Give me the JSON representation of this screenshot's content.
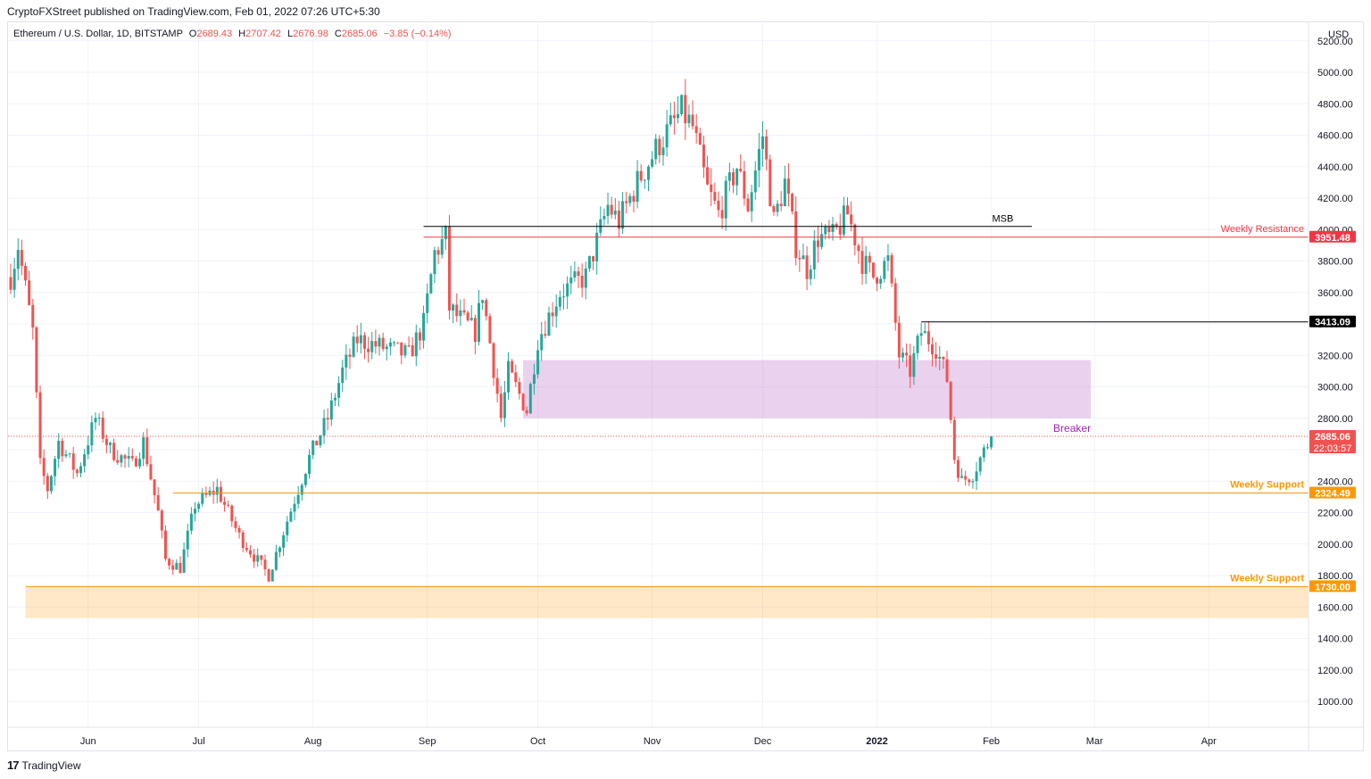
{
  "header": {
    "published": "CryptoFXStreet published on TradingView.com, Feb 01, 2022 07:26 UTC+5:30"
  },
  "legend": {
    "symbol": "Ethereum / U.S. Dollar, 1D, BITSTAMP",
    "o_label": "O",
    "o": "2689.43",
    "h_label": "H",
    "h": "2707.42",
    "l_label": "L",
    "l": "2676.98",
    "c_label": "C",
    "c": "2685.06",
    "change": "−3.85 (−0.14%)"
  },
  "footer": {
    "brand": "TradingView"
  },
  "colors": {
    "up": "#26a69a",
    "down": "#ef5350",
    "resistance": "#f23645",
    "support": "#ff9800",
    "breaker_fill": "#e1bee7",
    "breaker_text": "#9c27b0"
  },
  "chart_data": {
    "type": "candlestick",
    "currency": "USD",
    "ylim": [
      850,
      5300
    ],
    "y_ticks": [
      1000,
      1200,
      1400,
      1600,
      1800,
      2000,
      2200,
      2400,
      2600,
      2800,
      3000,
      3200,
      3400,
      3600,
      3800,
      4000,
      4200,
      4400,
      4600,
      4800,
      5000,
      5200
    ],
    "x_ticks": [
      "Jun",
      "Jul",
      "Aug",
      "Sep",
      "Oct",
      "Nov",
      "Dec",
      "2022",
      "Feb",
      "Mar",
      "Apr"
    ],
    "price_labels": [
      {
        "label": "3951.48",
        "value": 3951.48,
        "color": "#f23645"
      },
      {
        "label": "3413.09",
        "value": 3413.09,
        "color": "#000000"
      },
      {
        "label": "2685.06",
        "value": 2685.06,
        "color": "#ef5350",
        "sub": "22:03:57"
      },
      {
        "label": "2324.49",
        "value": 2324.49,
        "color": "#ff9800"
      },
      {
        "label": "1730.00",
        "value": 1730.0,
        "color": "#ff9800"
      }
    ],
    "annotations": {
      "msb": {
        "label": "MSB",
        "value": 4020
      },
      "weekly_resistance": {
        "label": "Weekly Resistance",
        "value": 3951.48
      },
      "breaker": {
        "label": "Breaker",
        "low": 2800,
        "high": 3170
      },
      "weekly_support_1": {
        "label": "Weekly Support",
        "value": 2324.49
      },
      "weekly_support_2": {
        "label": "Weekly Support",
        "value": 1730.0,
        "zone_low": 1530
      },
      "level_3413": {
        "value": 3413.09
      }
    },
    "anchors": [
      [
        "2021-05-11",
        3700
      ],
      [
        "2021-05-13",
        3900
      ],
      [
        "2021-05-17",
        3350
      ],
      [
        "2021-05-19",
        2500
      ],
      [
        "2021-05-21",
        2350
      ],
      [
        "2021-05-24",
        2650
      ],
      [
        "2021-05-29",
        2450
      ],
      [
        "2021-06-03",
        2800
      ],
      [
        "2021-06-07",
        2600
      ],
      [
        "2021-06-13",
        2500
      ],
      [
        "2021-06-16",
        2650
      ],
      [
        "2021-06-20",
        2200
      ],
      [
        "2021-06-22",
        1900
      ],
      [
        "2021-06-26",
        1850
      ],
      [
        "2021-06-30",
        2250
      ],
      [
        "2021-07-06",
        2350
      ],
      [
        "2021-07-12",
        2050
      ],
      [
        "2021-07-20",
        1800
      ],
      [
        "2021-07-25",
        2150
      ],
      [
        "2021-07-31",
        2550
      ],
      [
        "2021-08-05",
        2800
      ],
      [
        "2021-08-09",
        3100
      ],
      [
        "2021-08-13",
        3300
      ],
      [
        "2021-08-20",
        3250
      ],
      [
        "2021-08-27",
        3200
      ],
      [
        "2021-08-31",
        3400
      ],
      [
        "2021-09-03",
        3850
      ],
      [
        "2021-09-06",
        3950
      ],
      [
        "2021-09-07",
        3500
      ],
      [
        "2021-09-09",
        3450
      ],
      [
        "2021-09-14",
        3350
      ],
      [
        "2021-09-16",
        3600
      ],
      [
        "2021-09-21",
        2800
      ],
      [
        "2021-09-23",
        3100
      ],
      [
        "2021-09-28",
        2850
      ],
      [
        "2021-10-01",
        3300
      ],
      [
        "2021-10-07",
        3600
      ],
      [
        "2021-10-14",
        3700
      ],
      [
        "2021-10-20",
        4150
      ],
      [
        "2021-10-23",
        4050
      ],
      [
        "2021-10-28",
        4300
      ],
      [
        "2021-11-03",
        4550
      ],
      [
        "2021-11-09",
        4750
      ],
      [
        "2021-11-12",
        4650
      ],
      [
        "2021-11-16",
        4250
      ],
      [
        "2021-11-19",
        4100
      ],
      [
        "2021-11-24",
        4400
      ],
      [
        "2021-11-27",
        4150
      ],
      [
        "2021-12-01",
        4600
      ],
      [
        "2021-12-04",
        4050
      ],
      [
        "2021-12-07",
        4300
      ],
      [
        "2021-12-10",
        3900
      ],
      [
        "2021-12-13",
        3750
      ],
      [
        "2021-12-16",
        3950
      ],
      [
        "2021-12-20",
        3950
      ],
      [
        "2021-12-24",
        4100
      ],
      [
        "2021-12-28",
        3800
      ],
      [
        "2021-12-31",
        3700
      ],
      [
        "2022-01-04",
        3800
      ],
      [
        "2022-01-07",
        3200
      ],
      [
        "2022-01-10",
        3100
      ],
      [
        "2022-01-13",
        3350
      ],
      [
        "2022-01-17",
        3250
      ],
      [
        "2022-01-20",
        3050
      ],
      [
        "2022-01-22",
        2550
      ],
      [
        "2022-01-24",
        2400
      ],
      [
        "2022-01-27",
        2450
      ],
      [
        "2022-02-01",
        2685.06
      ]
    ]
  }
}
